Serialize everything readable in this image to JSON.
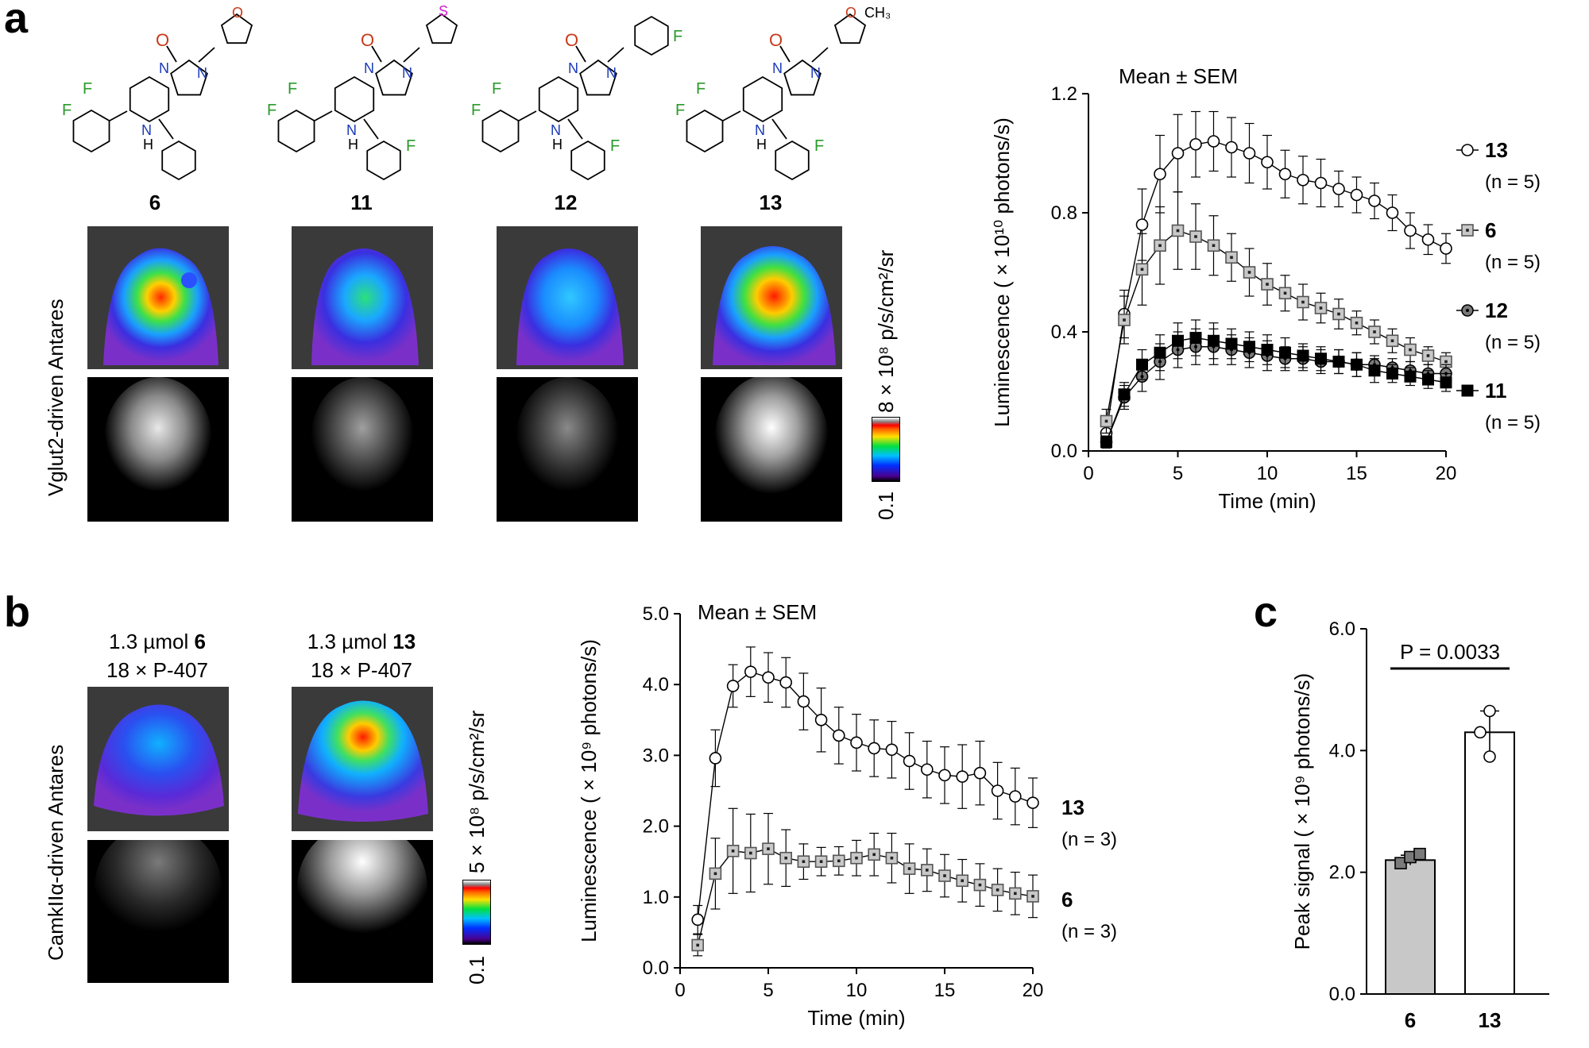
{
  "panels": {
    "a": "a",
    "b": "b",
    "c": "c"
  },
  "panel_a": {
    "compounds": [
      "6",
      "11",
      "12",
      "13"
    ],
    "row_label": "Vglut2-driven Antares",
    "colorbar": {
      "max_label": "8 × 10⁸ p/s/cm²/sr",
      "min_label": "0.1"
    },
    "structure_atoms": {
      "F": "F",
      "O": "O",
      "N": "N",
      "NH": "H",
      "S": "S",
      "CH3": "CH₃"
    }
  },
  "panel_b": {
    "row_label": "CamkIIα-driven Antares",
    "doses": [
      {
        "line1_prefix": "1.3 µmol ",
        "line1_bold": "6",
        "line2": "18 × P-407"
      },
      {
        "line1_prefix": "1.3 µmol ",
        "line1_bold": "13",
        "line2": "18 × P-407"
      }
    ],
    "colorbar": {
      "max_label": "5 × 10⁸ p/s/cm²/sr",
      "min_label": "0.1"
    }
  },
  "colors": {
    "gray_marker": "#c8c8c8",
    "dark_marker": "#7a7a7a",
    "black": "#000000"
  },
  "chart_data": [
    {
      "id": "a",
      "type": "line",
      "title": "Mean ± SEM",
      "xlabel": "Time (min)",
      "ylabel": "Luminescence ( × 10¹⁰ photons/s)",
      "xlim": [
        0,
        20
      ],
      "ylim": [
        0,
        1.2
      ],
      "xticks": [
        0,
        5,
        10,
        15,
        20
      ],
      "yticks": [
        "0.0",
        "0.4",
        "0.8",
        "1.2"
      ],
      "x": [
        1,
        2,
        3,
        4,
        5,
        6,
        7,
        8,
        9,
        10,
        11,
        12,
        13,
        14,
        15,
        16,
        17,
        18,
        19,
        20
      ],
      "series": [
        {
          "name": "13",
          "n": "(n = 5)",
          "marker": "circle-open",
          "values": [
            0.06,
            0.46,
            0.76,
            0.93,
            1.0,
            1.03,
            1.04,
            1.02,
            1.0,
            0.97,
            0.93,
            0.91,
            0.9,
            0.88,
            0.86,
            0.84,
            0.8,
            0.74,
            0.71,
            0.68
          ],
          "err": [
            0.03,
            0.08,
            0.12,
            0.13,
            0.13,
            0.11,
            0.1,
            0.1,
            0.1,
            0.09,
            0.08,
            0.08,
            0.08,
            0.06,
            0.06,
            0.06,
            0.06,
            0.06,
            0.05,
            0.05
          ]
        },
        {
          "name": "6",
          "n": "(n = 5)",
          "marker": "square-gray",
          "values": [
            0.1,
            0.44,
            0.61,
            0.69,
            0.74,
            0.72,
            0.69,
            0.65,
            0.6,
            0.56,
            0.53,
            0.5,
            0.48,
            0.46,
            0.43,
            0.4,
            0.37,
            0.34,
            0.32,
            0.3
          ],
          "err": [
            0.04,
            0.08,
            0.12,
            0.13,
            0.13,
            0.11,
            0.1,
            0.08,
            0.08,
            0.07,
            0.06,
            0.06,
            0.05,
            0.05,
            0.04,
            0.04,
            0.04,
            0.04,
            0.03,
            0.03
          ]
        },
        {
          "name": "12",
          "n": "(n = 5)",
          "marker": "circle-gray",
          "values": [
            0.03,
            0.18,
            0.25,
            0.3,
            0.34,
            0.35,
            0.35,
            0.34,
            0.33,
            0.32,
            0.31,
            0.31,
            0.3,
            0.3,
            0.29,
            0.29,
            0.28,
            0.27,
            0.26,
            0.26
          ],
          "err": [
            0.02,
            0.04,
            0.05,
            0.06,
            0.06,
            0.06,
            0.06,
            0.05,
            0.05,
            0.05,
            0.04,
            0.04,
            0.04,
            0.04,
            0.04,
            0.03,
            0.03,
            0.03,
            0.03,
            0.03
          ]
        },
        {
          "name": "11",
          "n": "(n = 5)",
          "marker": "square-black",
          "values": [
            0.03,
            0.19,
            0.29,
            0.33,
            0.37,
            0.38,
            0.37,
            0.36,
            0.35,
            0.34,
            0.33,
            0.32,
            0.31,
            0.3,
            0.29,
            0.27,
            0.26,
            0.25,
            0.24,
            0.23
          ],
          "err": [
            0.02,
            0.04,
            0.05,
            0.06,
            0.06,
            0.06,
            0.06,
            0.05,
            0.05,
            0.05,
            0.05,
            0.04,
            0.04,
            0.04,
            0.04,
            0.04,
            0.03,
            0.03,
            0.03,
            0.03
          ]
        }
      ]
    },
    {
      "id": "b",
      "type": "line",
      "title": "Mean ± SEM",
      "xlabel": "Time (min)",
      "ylabel": "Luminescence ( × 10⁹ photons/s)",
      "xlim": [
        0,
        20
      ],
      "ylim": [
        0,
        5
      ],
      "xticks": [
        0,
        5,
        10,
        15,
        20
      ],
      "yticks": [
        "0.0",
        "1.0",
        "2.0",
        "3.0",
        "4.0",
        "5.0"
      ],
      "x": [
        1,
        2,
        3,
        4,
        5,
        6,
        7,
        8,
        9,
        10,
        11,
        12,
        13,
        14,
        15,
        16,
        17,
        18,
        19,
        20
      ],
      "series": [
        {
          "name": "13",
          "n": "(n = 3)",
          "marker": "circle-open",
          "values": [
            0.68,
            2.96,
            3.98,
            4.18,
            4.1,
            4.03,
            3.76,
            3.5,
            3.28,
            3.18,
            3.1,
            3.08,
            2.92,
            2.8,
            2.72,
            2.7,
            2.75,
            2.5,
            2.42,
            2.33
          ],
          "err": [
            0.2,
            0.4,
            0.3,
            0.35,
            0.35,
            0.35,
            0.4,
            0.45,
            0.4,
            0.4,
            0.4,
            0.4,
            0.4,
            0.4,
            0.4,
            0.45,
            0.45,
            0.4,
            0.4,
            0.35
          ]
        },
        {
          "name": "6",
          "n": "(n = 3)",
          "marker": "square-gray",
          "values": [
            0.32,
            1.33,
            1.65,
            1.62,
            1.68,
            1.55,
            1.5,
            1.5,
            1.51,
            1.55,
            1.6,
            1.55,
            1.4,
            1.38,
            1.3,
            1.23,
            1.17,
            1.1,
            1.05,
            1.01
          ],
          "err": [
            0.15,
            0.5,
            0.6,
            0.55,
            0.5,
            0.4,
            0.25,
            0.2,
            0.2,
            0.25,
            0.3,
            0.35,
            0.35,
            0.3,
            0.3,
            0.3,
            0.3,
            0.3,
            0.3,
            0.3
          ]
        }
      ]
    },
    {
      "id": "c",
      "type": "bar",
      "xlabel": "",
      "ylabel": "Peak signal ( × 10⁹ photons/s)",
      "ylim": [
        0,
        6
      ],
      "yticks": [
        "0.0",
        "2.0",
        "4.0",
        "6.0"
      ],
      "categories": [
        "6",
        "13"
      ],
      "values": [
        2.2,
        4.3
      ],
      "err": [
        0.08,
        0.35
      ],
      "points": [
        [
          2.15,
          2.25,
          2.3
        ],
        [
          4.65,
          4.3,
          3.9
        ]
      ],
      "annotation": "P = 0.0033"
    }
  ]
}
